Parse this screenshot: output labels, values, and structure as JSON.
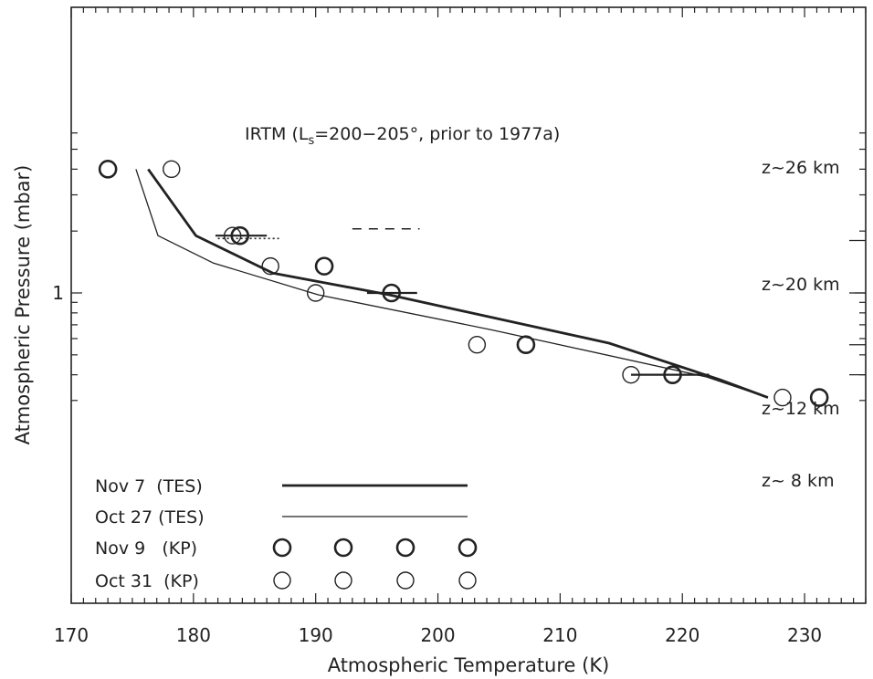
{
  "chart_data": {
    "type": "line",
    "xlabel": "Atmospheric Temperature (K)",
    "ylabel": "Atmospheric Pressure (mbar)",
    "xlim": [
      170,
      235
    ],
    "x_ticks": [
      "170",
      "180",
      "190",
      "200",
      "210",
      "220",
      "230"
    ],
    "y_tick_label": "1",
    "y_scale": "log",
    "annotation": {
      "prefix": "IRTM (L",
      "sub": "s",
      "suffix": "=200−205°, prior to 1977a)"
    },
    "altitude_labels": [
      "z~26 km",
      "z~20 km",
      "z~12 km",
      "z~ 8 km"
    ],
    "altitude_pressures": [
      1.8,
      1.0,
      0.56,
      0.4
    ],
    "series": [
      {
        "name": "Nov 7  (TES)",
        "style": "thick-line",
        "points": [
          [
            176.3,
            4.0
          ],
          [
            180.2,
            1.9
          ],
          [
            186.5,
            1.25
          ],
          [
            196.0,
            0.98
          ],
          [
            214.0,
            0.57
          ],
          [
            223.0,
            0.38
          ],
          [
            227.0,
            0.31
          ]
        ]
      },
      {
        "name": "Oct 27 (TES)",
        "style": "thin-line",
        "points": [
          [
            175.3,
            4.0
          ],
          [
            177.1,
            1.9
          ],
          [
            181.6,
            1.4
          ],
          [
            190.2,
            0.98
          ],
          [
            204.5,
            0.66
          ],
          [
            222.0,
            0.39
          ],
          [
            227.0,
            0.31
          ]
        ]
      },
      {
        "name": "Nov 9   (KP)",
        "style": "thick-circle",
        "points": [
          [
            173.0,
            4.0
          ],
          [
            183.8,
            1.9
          ],
          [
            190.7,
            1.35
          ],
          [
            196.2,
            1.0
          ],
          [
            207.2,
            0.56
          ],
          [
            219.2,
            0.4
          ],
          [
            231.2,
            0.31
          ]
        ],
        "errorbars": [
          [
            183.8,
            1.9,
            181.8,
            186.0
          ],
          [
            196.2,
            1.0,
            194.2,
            198.3
          ],
          [
            219.2,
            0.4,
            215.8,
            222.2
          ]
        ]
      },
      {
        "name": "Oct 31  (KP)",
        "style": "thin-circle",
        "points": [
          [
            178.2,
            4.0
          ],
          [
            183.2,
            1.9
          ],
          [
            186.3,
            1.35
          ],
          [
            190.0,
            1.0
          ],
          [
            203.2,
            0.56
          ],
          [
            215.8,
            0.4
          ],
          [
            228.2,
            0.31
          ]
        ]
      }
    ],
    "irtm": {
      "dotted_segment": [
        [
          182.0,
          1.84
        ],
        [
          187.0,
          1.84
        ]
      ],
      "legend_dashes": [
        [
          193.0,
          2.05
        ],
        [
          198.5,
          2.05
        ]
      ]
    }
  },
  "colors": {
    "ink": "#222222",
    "background": "#ffffff"
  }
}
